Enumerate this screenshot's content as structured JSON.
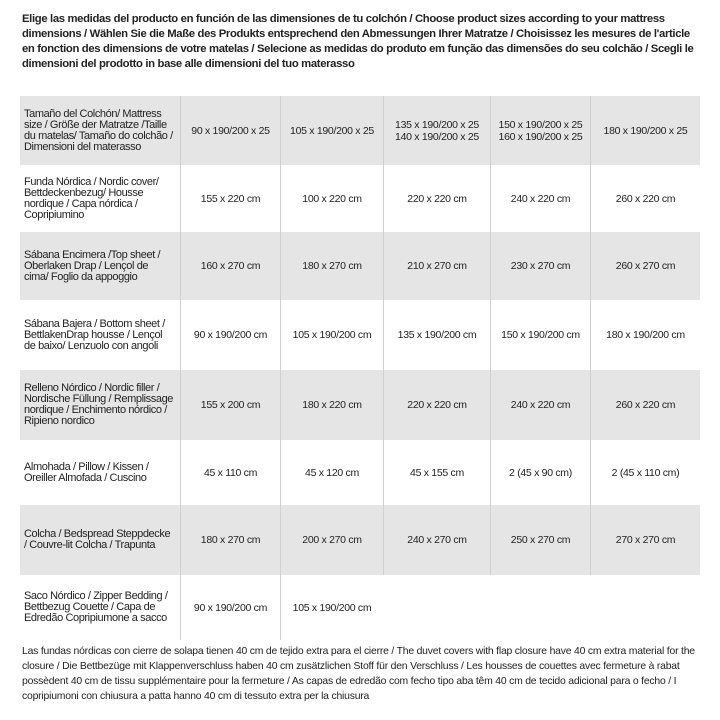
{
  "intro": "Elige las medidas del producto en función de las dimensiones de tu colchón / Choose product sizes according to your mattress dimensions / Wählen Sie die Maße des Produkts entsprechend den Abmessungen Ihrer Matratze / Choisissez les mesures de l'article en fonction des dimensions de votre matelas / Selecione as medidas do produto em função das dimensões do seu colchão / Scegli le dimensioni del prodotto in base alle dimensioni del tuo materasso",
  "table": {
    "header": [
      "Tamaño del Colchón/ Mattress size / Größe der Matratze /Taille du matelas/ Tamaño do colchão / Dimensioni del materasso",
      "90 x 190/200 x 25",
      "105 x 190/200 x 25",
      "135 x 190/200 x 25\n140 x 190/200 x 25",
      "150 x 190/200 x 25\n160 x 190/200 x 25",
      "180 x 190/200 x 25"
    ],
    "rows": [
      [
        "Funda Nórdica /  Nordic cover/ Bettdeckenbezug/ Housse nordique  / Capa nórdica / Copripiumino",
        "155 x 220 cm",
        "100 x 220 cm",
        "220 x 220 cm",
        "240 x 220 cm",
        "260 x 220 cm"
      ],
      [
        "Sábana Encimera /Top sheet / Oberlaken Drap / Lençol de cima/ Foglio da appoggio",
        "160 x 270 cm",
        "180 x 270 cm",
        "210 x 270 cm",
        "230 x 270 cm",
        "260 x 270 cm"
      ],
      [
        "Sábana Bajera / Bottom sheet / BettlakenDrap housse / Lençol de baixo/ Lenzuolo con angoli",
        "90 x 190/200 cm",
        "105 x 190/200 cm",
        "135 x 190/200 cm",
        "150 x 190/200 cm",
        "180 x 190/200 cm"
      ],
      [
        "Relleno Nórdico / Nordic filler / Nordische Füllung / Remplissage nordique / Enchimento nórdico / Ripieno nordico",
        "155 x 200 cm",
        "180 x 220 cm",
        "220 x 220 cm",
        "240 x 220 cm",
        "260 x 220 cm"
      ],
      [
        "Almohada  / Pillow / Kissen / Oreiller Almofada / Cuscino",
        "45 x 110 cm",
        "45 x 120 cm",
        "45 x 155 cm",
        "2 (45 x 90 cm)",
        "2 (45 x 110 cm)"
      ],
      [
        "Colcha / Bedspread Steppdecke / Couvre-lit Colcha / Trapunta",
        "180 x 270 cm",
        "200 x 270 cm",
        "240 x 270 cm",
        "250 x 270 cm",
        "270 x 270 cm"
      ],
      [
        "Saco Nórdico / Zipper Bedding / Bettbezug Couette  / Capa de Edredão Copripiumone a sacco",
        "90 x 190/200 cm",
        "105 x 190/200 cm"
      ]
    ]
  },
  "footer": "Las fundas nórdicas con cierre de solapa tienen 40 cm de tejido extra para el cierre  /  The duvet covers with flap closure have 40 cm extra material for the closure / Die Bettbezüge mit Klappenverschluss haben 40 cm zusätzlichen Stoff für den Verschluss / Les housses de couettes avec fermeture à rabat possèdent 40 cm de tissu supplémentaire pour la fermeture / As capas de edredão com fecho tipo aba têm 40 cm de tecido adicional para o fecho / I copripiumoni con chiusura a patta hanno 40 cm di tessuto extra per la chiusura"
}
